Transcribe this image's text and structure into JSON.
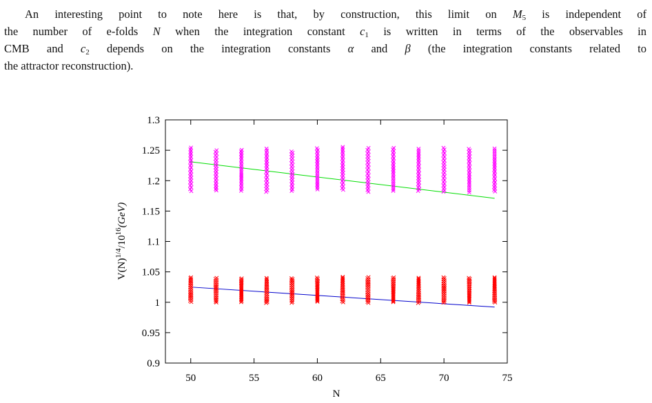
{
  "paragraph": {
    "l1a": "An interesting point to note here is that, by construction, this limit on ",
    "l1v": "M",
    "l1s": "5",
    "l1b": " is independent of",
    "l2a": "the number of e-folds ",
    "l2v": "N",
    "l2b": " when the integration constant ",
    "l2c": "c",
    "l2cs": "1",
    "l2d": " is written in terms of the observables in",
    "l3a": "CMB and ",
    "l3c": "c",
    "l3cs": "2",
    "l3b": " depends on the integration constants ",
    "l3al": "α",
    "l3and": " and ",
    "l3be": "β",
    "l3c2": " (the integration constants related to",
    "l4": "the attractor reconstruction)."
  },
  "chart_data": {
    "type": "scatter",
    "xlabel": "N",
    "ylabel": "V(N)^{1/4}/10^{16}(GeV)",
    "ylabel_parts": {
      "base": "V(N)",
      "exp1": "1/4",
      "mid": "/10",
      "exp2": "16",
      "unit": "(GeV)"
    },
    "xlim": [
      48,
      75
    ],
    "ylim": [
      0.9,
      1.3
    ],
    "xticks": [
      "50",
      "55",
      "60",
      "65",
      "70",
      "75"
    ],
    "yticks": [
      "0.9",
      "0.95",
      "1",
      "1.05",
      "1.1",
      "1.15",
      "1.2",
      "1.25",
      "1.3"
    ],
    "grid": false,
    "legend": "none",
    "x_values": [
      50,
      52,
      54,
      56,
      58,
      60,
      62,
      64,
      66,
      68,
      70,
      72,
      74
    ],
    "series": [
      {
        "color": "#ff00ff",
        "marker": "x",
        "values_range": [
          [
            1.182,
            1.256
          ],
          [
            1.183,
            1.25
          ],
          [
            1.183,
            1.252
          ],
          [
            1.18,
            1.253
          ],
          [
            1.183,
            1.249
          ],
          [
            1.184,
            1.254
          ],
          [
            1.185,
            1.256
          ],
          [
            1.18,
            1.255
          ],
          [
            1.183,
            1.254
          ],
          [
            1.182,
            1.254
          ],
          [
            1.181,
            1.254
          ],
          [
            1.18,
            1.254
          ],
          [
            1.181,
            1.253
          ]
        ]
      },
      {
        "color": "#ff0000",
        "marker": "x",
        "values_range": [
          [
            1.0,
            1.042
          ],
          [
            0.999,
            1.04
          ],
          [
            1.0,
            1.04
          ],
          [
            0.998,
            1.04
          ],
          [
            0.999,
            1.04
          ],
          [
            1.0,
            1.041
          ],
          [
            1.0,
            1.042
          ],
          [
            0.998,
            1.042
          ],
          [
            1.0,
            1.041
          ],
          [
            0.998,
            1.041
          ],
          [
            0.999,
            1.041
          ],
          [
            0.999,
            1.041
          ],
          [
            0.999,
            1.041
          ]
        ]
      }
    ],
    "lines": [
      {
        "color": "#00dd00",
        "x": [
          50,
          74
        ],
        "y": [
          1.231,
          1.171
        ]
      },
      {
        "color": "#0000cc",
        "x": [
          50,
          74
        ],
        "y": [
          1.025,
          0.992
        ]
      }
    ]
  }
}
